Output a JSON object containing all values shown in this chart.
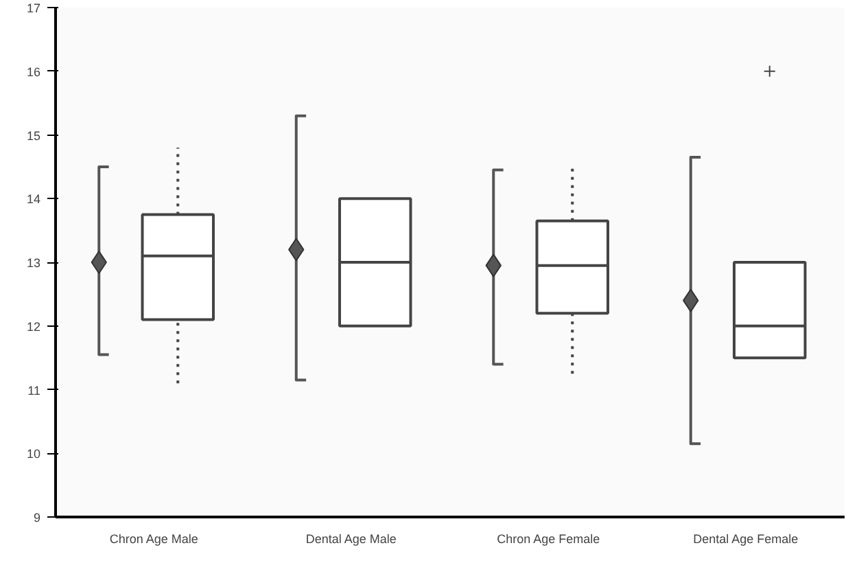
{
  "chart_data": {
    "type": "box",
    "categories": [
      "Chron Age Male",
      "Dental Age Male",
      "Chron Age Female",
      "Dental Age Female"
    ],
    "boxes": [
      {
        "low": 11.1,
        "q1": 12.1,
        "median": 13.1,
        "q3": 13.75,
        "high": 14.8
      },
      {
        "low": 12.0,
        "q1": 12.0,
        "median": 13.0,
        "q3": 14.0,
        "high": 14.0
      },
      {
        "low": 11.25,
        "q1": 12.2,
        "median": 12.95,
        "q3": 13.65,
        "high": 14.55
      },
      {
        "low": 11.5,
        "q1": 11.5,
        "median": 12.0,
        "q3": 13.0,
        "high": 13.0,
        "outliers": [
          16.0
        ]
      }
    ],
    "color": "#444444",
    "series": [
      {
        "type": "scatter",
        "color": "#555555",
        "marker": "diamond",
        "x": [
          "Chron Age Male",
          "Dental Age Male",
          "Chron Age Female",
          "Dental Age Female"
        ],
        "values": [
          13.0,
          13.2,
          12.95,
          12.4
        ],
        "errors": [
          [
            11.55,
            14.5
          ],
          [
            11.15,
            15.3
          ],
          [
            11.4,
            14.45
          ],
          [
            10.15,
            14.65
          ]
        ]
      }
    ],
    "ylim": [
      9,
      17
    ],
    "yticks": [
      9,
      10,
      11,
      12,
      13,
      14,
      15,
      16,
      17
    ],
    "grid": false
  }
}
